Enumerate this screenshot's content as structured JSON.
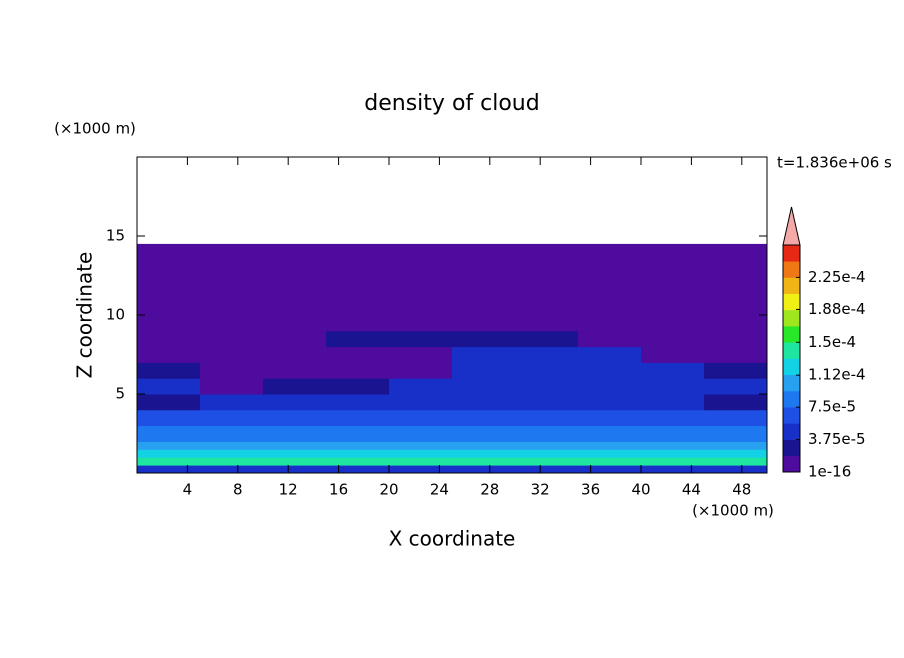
{
  "chart_data": {
    "type": "contour",
    "title": "density of cloud",
    "x_label": "X coordinate",
    "y_label": "Z coordinate",
    "x_unit": "(×1000 m)",
    "y_unit": "(×1000 m)",
    "annotation": "t=1.836e+06 s",
    "xlim": [
      0,
      50
    ],
    "ylim": [
      0,
      20
    ],
    "xticks": [
      4,
      8,
      12,
      16,
      20,
      24,
      28,
      32,
      36,
      40,
      44,
      48
    ],
    "yticks": [
      5,
      10,
      15
    ],
    "x_edges": [
      0,
      5,
      10,
      15,
      20,
      25,
      30,
      35,
      40,
      45,
      50
    ],
    "z_edges": [
      0,
      0.5,
      1,
      1.5,
      2,
      3,
      4,
      5,
      6,
      7,
      8,
      9,
      14.5
    ],
    "values": [
      [
        4e-05,
        4e-05,
        4e-05,
        4e-05,
        4e-05,
        4e-05,
        4e-05,
        4e-05,
        4e-05,
        4e-05
      ],
      [
        0.00014,
        0.00014,
        0.00014,
        0.00014,
        0.000145,
        0.000145,
        0.000145,
        0.000145,
        0.00014,
        0.00014
      ],
      [
        0.00012,
        0.00012,
        0.00012,
        0.00012,
        0.00012,
        0.00012,
        0.00012,
        0.00012,
        0.00012,
        0.00012
      ],
      [
        0.000105,
        0.000105,
        0.000105,
        0.000105,
        0.000105,
        0.000105,
        0.000105,
        0.000105,
        0.000105,
        0.000105
      ],
      [
        9e-05,
        9e-05,
        9e-05,
        9e-05,
        9e-05,
        9e-05,
        9e-05,
        9e-05,
        9e-05,
        9e-05
      ],
      [
        7e-05,
        7e-05,
        7e-05,
        7e-05,
        7e-05,
        7e-05,
        7e-05,
        7e-05,
        7e-05,
        7e-05
      ],
      [
        3e-05,
        5.5e-05,
        5.5e-05,
        5.5e-05,
        5.5e-05,
        5.5e-05,
        5.5e-05,
        5.5e-05,
        5.5e-05,
        3e-05
      ],
      [
        4e-05,
        1e-16,
        2.5e-05,
        3e-05,
        5e-05,
        5e-05,
        5e-05,
        5e-05,
        5e-05,
        4e-05
      ],
      [
        3e-05,
        1e-16,
        1e-16,
        1e-16,
        1e-16,
        5e-05,
        5e-05,
        5e-05,
        5e-05,
        3e-05
      ],
      [
        1e-16,
        1e-16,
        1e-16,
        1e-16,
        1e-16,
        4e-05,
        4e-05,
        4e-05,
        1e-16,
        1e-16
      ],
      [
        1e-16,
        1e-16,
        1e-16,
        2.5e-05,
        2.5e-05,
        2.5e-05,
        2.5e-05,
        1e-16,
        1e-16,
        1e-16
      ],
      [
        1e-16,
        1e-16,
        1e-16,
        1e-16,
        1e-16,
        1e-16,
        1e-16,
        1e-16,
        1e-16,
        1e-16
      ]
    ],
    "colorbar": {
      "clim": [
        1e-16,
        0.0002625
      ],
      "colors": [
        "#4f0a9e",
        "#1a1490",
        "#1830c8",
        "#1e50e6",
        "#1e78f0",
        "#28a0f0",
        "#14d2e6",
        "#1ee6a0",
        "#28e628",
        "#a0e61e",
        "#f0f014",
        "#f0b414",
        "#f07814",
        "#e62814"
      ],
      "extend_color": "#f4a8a8",
      "ticks": [
        1e-16,
        {
          "value": 3.75e-05,
          "label": "3.75e-5"
        },
        {
          "value": 7.5e-05,
          "label": "7.5e-5"
        },
        {
          "value": 0.000112,
          "label": "1.12e-4"
        },
        {
          "value": 0.00015,
          "label": "1.5e-4"
        },
        {
          "value": 0.000188,
          "label": "1.88e-4"
        },
        {
          "value": 0.000225,
          "label": "2.25e-4"
        }
      ]
    }
  }
}
